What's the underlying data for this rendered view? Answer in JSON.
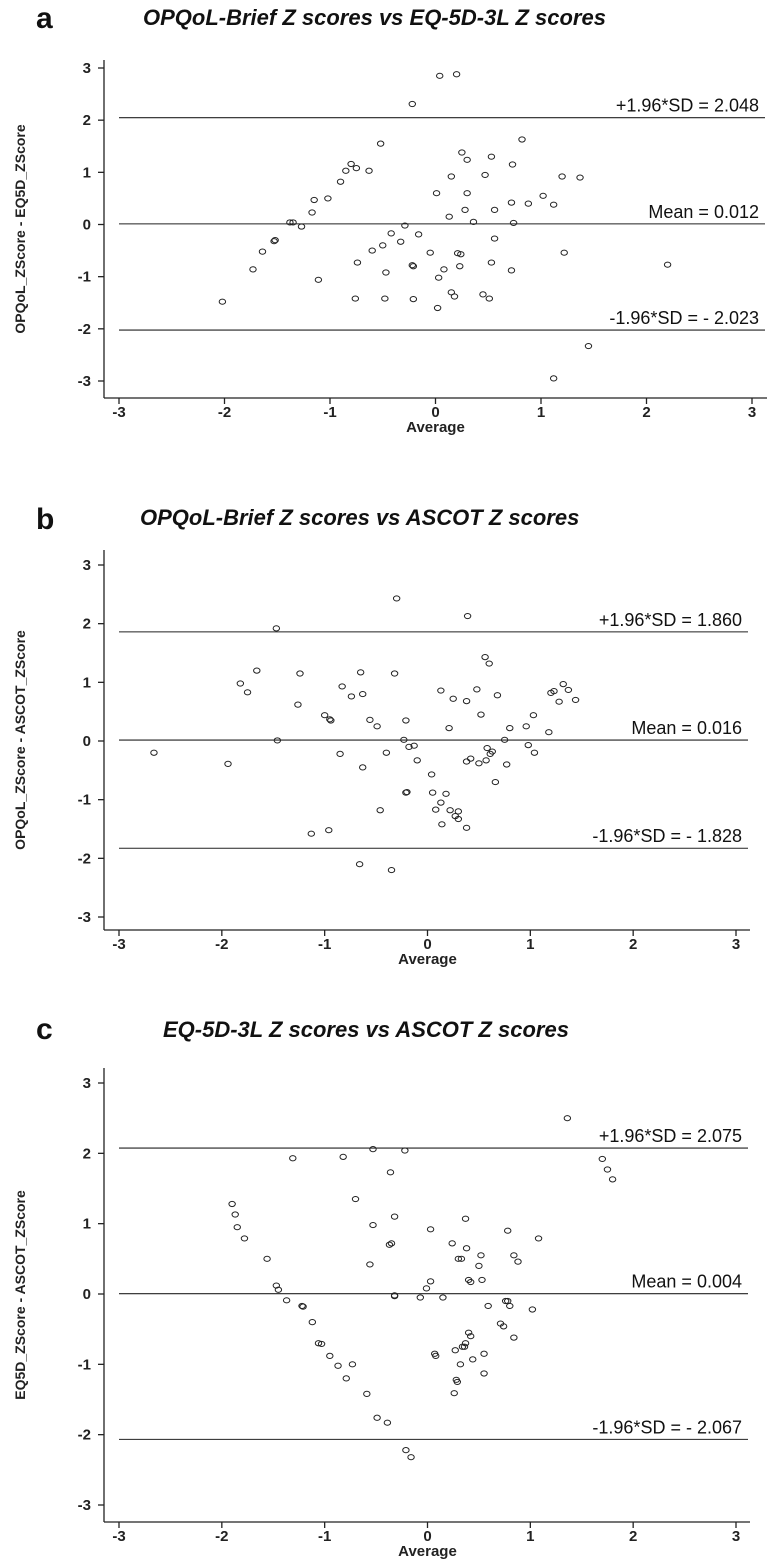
{
  "chart_data": [
    {
      "type": "scatter",
      "panel_label": "a",
      "title": "OPQoL-Brief Z scores vs EQ-5D-3L Z scores",
      "xlabel": "Average",
      "ylabel": "OPQoL_ZScore - EQ5D_ZScore",
      "xlim": [
        -3.15,
        3.15
      ],
      "ylim": [
        -3.3,
        3.25
      ],
      "xticks": [
        "-3",
        "-2",
        "-1",
        "0",
        "1",
        "2",
        "3"
      ],
      "yticks": [
        "-3",
        "-2",
        "-1",
        "0",
        "1",
        "2",
        "3"
      ],
      "reference_lines": [
        {
          "name": "upper",
          "value": 2.048,
          "label": "+1.96*SD = 2.048"
        },
        {
          "name": "mean",
          "value": 0.012,
          "label": "Mean = 0.012"
        },
        {
          "name": "lower",
          "value": -2.023,
          "label": "-1.96*SD = - 2.023"
        }
      ],
      "x": [
        0.04,
        0.2,
        -0.22,
        0.82,
        -0.52,
        0.25,
        0.53,
        0.3,
        0.73,
        -0.8,
        -0.75,
        -0.63,
        -0.85,
        0.15,
        0.47,
        1.2,
        1.37,
        -1.02,
        -1.15,
        -0.9,
        0.88,
        1.02,
        1.12,
        0.72,
        0.28,
        0.56,
        0.01,
        -1.17,
        -1.27,
        0.13,
        0.36,
        -1.35,
        -0.29,
        -1.38,
        -0.42,
        0.56,
        0.74,
        0.21,
        -0.16,
        -0.5,
        -0.6,
        -0.74,
        -0.33,
        -1.52,
        -1.53,
        -1.64,
        -0.21,
        -1.73,
        0.24,
        0.23,
        0.53,
        1.22,
        -0.22,
        0.08,
        0.03,
        -0.47,
        0.15,
        -1.11,
        -0.05,
        0.72,
        2.2,
        -2.02,
        -0.76,
        -0.48,
        -0.21,
        0.18,
        0.45,
        0.51,
        0.02,
        1.45,
        1.12,
        0.3
      ],
      "y": [
        2.85,
        2.88,
        2.31,
        1.63,
        1.55,
        1.38,
        1.3,
        1.24,
        1.15,
        1.16,
        1.08,
        1.03,
        1.03,
        0.92,
        0.95,
        0.92,
        0.9,
        0.5,
        0.47,
        0.82,
        0.4,
        0.55,
        0.38,
        0.42,
        0.28,
        0.28,
        0.6,
        0.23,
        -0.04,
        0.15,
        0.05,
        0.04,
        -0.02,
        0.04,
        -0.17,
        -0.27,
        0.03,
        -0.55,
        -0.19,
        -0.4,
        -0.5,
        -0.73,
        -0.33,
        -0.3,
        -0.32,
        -0.52,
        -0.8,
        -0.86,
        -0.57,
        -0.8,
        -0.73,
        -0.54,
        -0.78,
        -0.86,
        -1.02,
        -0.92,
        -1.3,
        -1.06,
        -0.54,
        -0.88,
        -0.77,
        -1.48,
        -1.42,
        -1.42,
        -1.43,
        -1.38,
        -1.34,
        -1.42,
        -1.6,
        -2.33,
        -2.95,
        0.6
      ]
    },
    {
      "type": "scatter",
      "panel_label": "b",
      "title": "OPQoL-Brief Z scores vs ASCOT Z scores",
      "xlabel": "Average",
      "ylabel": "OPQoL_ZScore - ASCOT_ZScore",
      "xlim": [
        -3.15,
        3.15
      ],
      "ylim": [
        -3.3,
        3.3
      ],
      "xticks": [
        "-3",
        "-2",
        "-1",
        "0",
        "1",
        "2",
        "3"
      ],
      "yticks": [
        "-3",
        "-2",
        "-1",
        "0",
        "1",
        "2",
        "3"
      ],
      "reference_lines": [
        {
          "name": "upper",
          "value": 1.86,
          "label": "+1.96*SD = 1.860"
        },
        {
          "name": "mean",
          "value": 0.016,
          "label": "Mean = 0.016"
        },
        {
          "name": "lower",
          "value": -1.828,
          "label": "-1.96*SD = - 1.828"
        }
      ],
      "x": [
        -0.3,
        0.39,
        -1.47,
        0.56,
        0.6,
        -1.66,
        -1.82,
        -1.75,
        -1.24,
        -0.65,
        -0.32,
        -0.83,
        -0.74,
        -0.63,
        -0.94,
        -1.26,
        -1.0,
        -0.95,
        -1.46,
        -2.66,
        -1.94,
        -0.56,
        -0.49,
        -0.21,
        -0.23,
        -0.18,
        -0.63,
        -0.4,
        -0.13,
        0.13,
        0.25,
        0.48,
        0.52,
        0.68,
        0.21,
        0.38,
        0.42,
        0.5,
        0.57,
        0.58,
        0.63,
        0.66,
        0.75,
        0.77,
        0.8,
        0.96,
        1.04,
        1.18,
        1.23,
        1.32,
        1.37,
        1.44,
        1.28,
        1.2,
        0.98,
        1.03,
        -0.21,
        -0.85,
        -0.1,
        0.05,
        0.13,
        0.04,
        0.08,
        0.14,
        0.22,
        0.18,
        0.27,
        0.3,
        0.38,
        0.3,
        -0.2,
        -0.96,
        -1.13,
        -0.46,
        -0.66,
        -0.35,
        0.61,
        0.38
      ],
      "y": [
        2.43,
        2.13,
        1.92,
        1.43,
        1.32,
        1.2,
        0.98,
        0.83,
        1.15,
        1.17,
        1.15,
        0.93,
        0.76,
        0.8,
        0.35,
        0.62,
        0.44,
        0.37,
        0.01,
        -0.2,
        -0.39,
        0.36,
        0.25,
        0.35,
        0.02,
        -0.1,
        -0.45,
        -0.2,
        -0.08,
        0.86,
        0.72,
        0.88,
        0.45,
        0.78,
        0.22,
        0.68,
        -0.3,
        -0.38,
        -0.33,
        -0.12,
        -0.18,
        -0.7,
        0.02,
        -0.4,
        0.22,
        0.25,
        -0.2,
        0.15,
        0.85,
        0.97,
        0.87,
        0.7,
        0.67,
        0.82,
        -0.07,
        0.44,
        -0.88,
        -0.22,
        -0.33,
        -0.88,
        -1.05,
        -0.57,
        -1.17,
        -1.42,
        -1.18,
        -0.9,
        -1.28,
        -1.33,
        -1.48,
        -1.2,
        -0.87,
        -1.52,
        -1.58,
        -1.18,
        -2.1,
        -2.2,
        -0.22,
        -0.35
      ]
    },
    {
      "type": "scatter",
      "panel_label": "c",
      "title": "EQ-5D-3L Z scores vs ASCOT Z scores",
      "xlabel": "Average",
      "ylabel": "EQ5D_ZScore - ASCOT_ZScore",
      "xlim": [
        -3.15,
        3.15
      ],
      "ylim": [
        -3.3,
        3.3
      ],
      "xticks": [
        "-3",
        "-2",
        "-1",
        "0",
        "1",
        "2",
        "3"
      ],
      "yticks": [
        "-3",
        "-2",
        "-1",
        "0",
        "1",
        "2",
        "3"
      ],
      "reference_lines": [
        {
          "name": "upper",
          "value": 2.075,
          "label": "+1.96*SD = 2.075"
        },
        {
          "name": "mean",
          "value": 0.004,
          "label": "Mean = 0.004"
        },
        {
          "name": "lower",
          "value": -2.067,
          "label": "-1.96*SD = - 2.067"
        }
      ],
      "x": [
        1.36,
        -1.31,
        -0.82,
        -0.53,
        -0.22,
        1.7,
        1.75,
        1.8,
        -0.36,
        -1.9,
        -1.87,
        -1.85,
        -1.78,
        -1.56,
        -0.7,
        -0.32,
        -0.53,
        -0.56,
        -0.37,
        -0.35,
        -0.32,
        -0.32,
        0.03,
        0.37,
        0.24,
        0.38,
        0.52,
        0.3,
        0.33,
        0.4,
        0.42,
        0.53,
        0.5,
        0.84,
        0.88,
        0.78,
        1.08,
        0.03,
        -0.07,
        0.15,
        0.4,
        0.42,
        0.59,
        0.76,
        0.78,
        0.8,
        0.84,
        1.02,
        0.71,
        0.74,
        -1.47,
        -1.45,
        -1.37,
        -1.22,
        -1.21,
        -1.12,
        -1.06,
        -1.03,
        -0.95,
        -0.87,
        -0.79,
        -0.73,
        -0.59,
        -0.49,
        -0.39,
        -0.21,
        -0.16,
        0.07,
        0.08,
        0.27,
        0.28,
        0.29,
        0.32,
        0.34,
        0.44,
        0.37,
        0.55,
        0.26,
        -0.01,
        0.36,
        0.55
      ],
      "y": [
        2.5,
        1.93,
        1.95,
        2.06,
        2.04,
        1.92,
        1.77,
        1.63,
        1.73,
        1.28,
        1.13,
        0.95,
        0.79,
        0.5,
        1.35,
        1.1,
        0.98,
        0.42,
        0.7,
        0.72,
        -0.02,
        -0.03,
        0.92,
        1.07,
        0.72,
        0.65,
        0.55,
        0.5,
        0.5,
        0.2,
        0.17,
        0.2,
        0.4,
        0.55,
        0.46,
        0.9,
        0.79,
        0.18,
        -0.05,
        -0.05,
        -0.55,
        -0.6,
        -0.17,
        -0.1,
        -0.1,
        -0.17,
        -0.62,
        -0.22,
        -0.42,
        -0.46,
        0.12,
        0.06,
        -0.09,
        -0.17,
        -0.18,
        -0.4,
        -0.7,
        -0.71,
        -0.88,
        -1.02,
        -1.2,
        -1.0,
        -1.42,
        -1.76,
        -1.83,
        -2.22,
        -2.32,
        -0.85,
        -0.88,
        -0.8,
        -1.22,
        -1.25,
        -1.0,
        -0.75,
        -0.93,
        -0.7,
        -0.85,
        -1.41,
        0.08,
        -0.75,
        -1.13
      ]
    }
  ]
}
